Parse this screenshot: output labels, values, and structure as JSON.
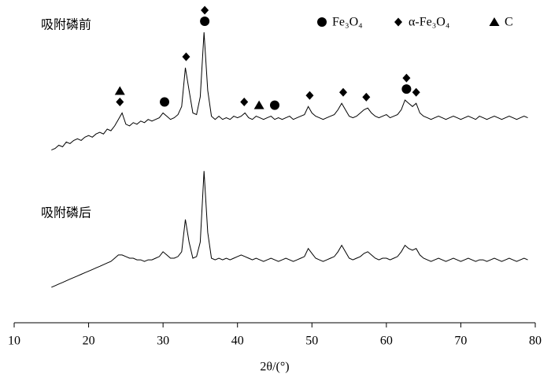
{
  "chart_data": {
    "type": "line",
    "xlabel": "2θ/(°)",
    "xlim": [
      10,
      80
    ],
    "xticks": [
      10,
      20,
      30,
      40,
      50,
      60,
      70,
      80
    ],
    "ylim": [
      0,
      100
    ],
    "x": [
      15,
      15.5,
      16,
      16.5,
      17,
      17.5,
      18,
      18.5,
      19,
      19.5,
      20,
      20.5,
      21,
      21.5,
      22,
      22.5,
      23,
      23.5,
      24,
      24.5,
      25,
      25.5,
      26,
      26.5,
      27,
      27.5,
      28,
      28.5,
      29,
      29.5,
      30,
      30.5,
      31,
      31.5,
      32,
      32.5,
      33,
      33.5,
      34,
      34.5,
      35,
      35.5,
      36,
      36.5,
      37,
      37.5,
      38,
      38.5,
      39,
      39.5,
      40,
      40.5,
      41,
      41.5,
      42,
      42.5,
      43,
      43.5,
      44,
      44.5,
      45,
      45.5,
      46,
      46.5,
      47,
      47.5,
      48,
      48.5,
      49,
      49.5,
      50,
      50.5,
      51,
      51.5,
      52,
      52.5,
      53,
      53.5,
      54,
      54.5,
      55,
      55.5,
      56,
      56.5,
      57,
      57.5,
      58,
      58.5,
      59,
      59.5,
      60,
      60.5,
      61,
      61.5,
      62,
      62.5,
      63,
      63.5,
      64,
      64.5,
      65,
      65.5,
      66,
      66.5,
      67,
      67.5,
      68,
      68.5,
      69,
      69.5,
      70,
      70.5,
      71,
      71.5,
      72,
      72.5,
      73,
      73.5,
      74,
      74.5,
      75,
      75.5,
      76,
      76.5,
      77,
      77.5,
      78,
      78.5,
      79
    ],
    "series": [
      {
        "name": "吸附磷前",
        "color": "#000000",
        "values": [
          53.5,
          54,
          55,
          54.5,
          56,
          55.5,
          56.5,
          57,
          56.5,
          57.5,
          58,
          57.5,
          58.5,
          59,
          58.5,
          60,
          59.5,
          61,
          63,
          65,
          61.5,
          61,
          62,
          61.5,
          62.5,
          62,
          63,
          62.5,
          63,
          63.5,
          65,
          64,
          63,
          63.5,
          64.5,
          67,
          79,
          72,
          65,
          64.5,
          70,
          90,
          72,
          64,
          63,
          64,
          63,
          63.5,
          63,
          64,
          63.5,
          64,
          65,
          63.5,
          63,
          64,
          63.5,
          63,
          63.5,
          64,
          63,
          63.5,
          63,
          63.5,
          64,
          63,
          63.5,
          64,
          64.5,
          67,
          65,
          64,
          63.5,
          63,
          63.5,
          64,
          64.5,
          66,
          68,
          66,
          64,
          63.5,
          64,
          65,
          66,
          66.5,
          65,
          64,
          63.5,
          64,
          64.5,
          63.5,
          64,
          64.5,
          66,
          69,
          68,
          67,
          68,
          65,
          64,
          63.5,
          63,
          63.5,
          64,
          63.5,
          63,
          63.5,
          64,
          63.5,
          63,
          63.5,
          64,
          63.5,
          63,
          64,
          63.5,
          63,
          63.5,
          64,
          63.5,
          63,
          63.5,
          64,
          63.5,
          63,
          63.5,
          64,
          63.5
        ]
      },
      {
        "name": "吸附磷后",
        "color": "#000000",
        "values": [
          11,
          11.5,
          12,
          12.5,
          13,
          13.5,
          14,
          14.5,
          15,
          15.5,
          16,
          16.5,
          17,
          17.5,
          18,
          18.5,
          19,
          20,
          21,
          21,
          20.5,
          20,
          20,
          19.5,
          19.5,
          19,
          19.5,
          19.5,
          20,
          20.5,
          22,
          21,
          20,
          20,
          20.5,
          22,
          32,
          25,
          20,
          20.5,
          25,
          47,
          28,
          20,
          19.5,
          20,
          19.5,
          20,
          19.5,
          20,
          20.5,
          21,
          20.5,
          20,
          19.5,
          20,
          19.5,
          19,
          19.5,
          20,
          19.5,
          19,
          19.5,
          20,
          19.5,
          19,
          19.5,
          20,
          20.5,
          23,
          21.5,
          20,
          19.5,
          19,
          19.5,
          20,
          20.5,
          22,
          24,
          22,
          20,
          19.5,
          20,
          20.5,
          21.5,
          22,
          21,
          20,
          19.5,
          20,
          20,
          19.5,
          20,
          20.5,
          22,
          24,
          23,
          22.5,
          23,
          21,
          20,
          19.5,
          19,
          19.5,
          20,
          19.5,
          19,
          19.5,
          20,
          19.5,
          19,
          19.5,
          20,
          19.5,
          19,
          19.5,
          19.5,
          19,
          19.5,
          20,
          19.5,
          19,
          19.5,
          20,
          19.5,
          19,
          19.5,
          20,
          19.5
        ]
      }
    ],
    "legend": [
      {
        "label": "Fe₃O₄",
        "marker": "circle"
      },
      {
        "label": "α-Fe₃O₄",
        "marker": "diamond"
      },
      {
        "label": "C",
        "marker": "triangle"
      }
    ],
    "peak_markers": [
      {
        "x": 24.2,
        "markers": [
          "diamond",
          "triangle"
        ]
      },
      {
        "x": 30.2,
        "markers": [
          "circle"
        ]
      },
      {
        "x": 33.1,
        "markers": [
          "diamond"
        ]
      },
      {
        "x": 35.6,
        "markers": [
          "circle",
          "diamond"
        ]
      },
      {
        "x": 40.9,
        "markers": [
          "diamond"
        ]
      },
      {
        "x": 42.9,
        "markers": [
          "triangle"
        ]
      },
      {
        "x": 45.0,
        "markers": [
          "circle"
        ]
      },
      {
        "x": 49.7,
        "markers": [
          "diamond"
        ]
      },
      {
        "x": 54.2,
        "markers": [
          "diamond"
        ]
      },
      {
        "x": 57.3,
        "markers": [
          "diamond"
        ]
      },
      {
        "x": 62.7,
        "markers": [
          "circle",
          "diamond"
        ]
      },
      {
        "x": 64.0,
        "markers": [
          "diamond"
        ]
      }
    ]
  }
}
